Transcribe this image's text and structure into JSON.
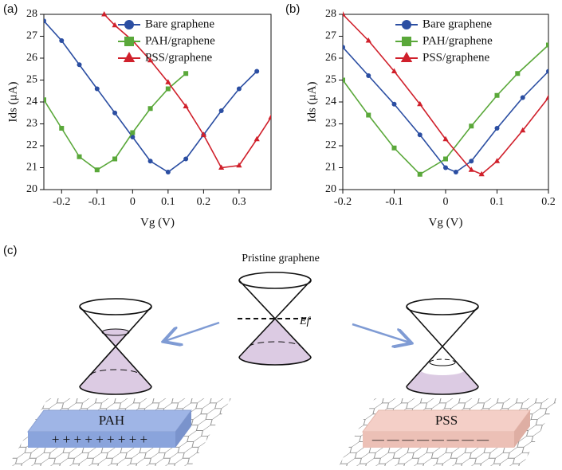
{
  "chart_data": [
    {
      "type": "line",
      "panel": "(a)",
      "x_label": "Vg (V)",
      "y_label": "Ids (μA)",
      "xlim": [
        -0.25,
        0.39
      ],
      "xticks": [
        -0.2,
        -0.1,
        0.0,
        0.1,
        0.2,
        0.3
      ],
      "ylim": [
        20,
        28
      ],
      "yticks": [
        20,
        21,
        22,
        23,
        24,
        25,
        26,
        27,
        28
      ],
      "legend": "upper right",
      "series": [
        {
          "name": "Bare graphene",
          "color": "#2b4ea2",
          "marker": "circle",
          "x": [
            -0.25,
            -0.2,
            -0.15,
            -0.1,
            -0.05,
            0,
            0.05,
            0.1,
            0.15,
            0.2,
            0.25,
            0.3,
            0.35
          ],
          "values": [
            27.7,
            26.8,
            25.7,
            24.6,
            23.5,
            22.4,
            21.3,
            20.8,
            21.4,
            22.5,
            23.6,
            24.6,
            25.4
          ]
        },
        {
          "name": "PAH/graphene",
          "color": "#5aa83a",
          "marker": "square",
          "x": [
            -0.25,
            -0.2,
            -0.15,
            -0.1,
            -0.05,
            0,
            0.05,
            0.1,
            0.15
          ],
          "values": [
            24.1,
            22.8,
            21.5,
            20.9,
            21.4,
            22.6,
            23.7,
            24.6,
            25.3
          ]
        },
        {
          "name": "PSS/graphene",
          "color": "#d0202b",
          "marker": "triangle",
          "x": [
            -0.08,
            -0.05,
            0,
            0.05,
            0.1,
            0.15,
            0.2,
            0.25,
            0.3,
            0.35,
            0.39
          ],
          "values": [
            28.0,
            27.5,
            26.8,
            25.9,
            24.9,
            23.8,
            22.5,
            21.0,
            21.1,
            22.3,
            23.3
          ]
        }
      ]
    },
    {
      "type": "line",
      "panel": "(b)",
      "x_label": "Vg (V)",
      "y_label": "Ids (μA)",
      "xlim": [
        -0.2,
        0.2
      ],
      "xticks": [
        -0.2,
        -0.1,
        0.0,
        0.1,
        0.2
      ],
      "ylim": [
        20,
        28
      ],
      "yticks": [
        20,
        21,
        22,
        23,
        24,
        25,
        26,
        27,
        28
      ],
      "legend": "upper right",
      "series": [
        {
          "name": "Bare graphene",
          "color": "#2b4ea2",
          "marker": "circle",
          "x": [
            -0.2,
            -0.15,
            -0.1,
            -0.05,
            0,
            0.02,
            0.05,
            0.1,
            0.15,
            0.2
          ],
          "values": [
            26.5,
            25.2,
            23.9,
            22.5,
            21.0,
            20.8,
            21.3,
            22.8,
            24.2,
            25.4
          ]
        },
        {
          "name": "PAH/graphene",
          "color": "#5aa83a",
          "marker": "square",
          "x": [
            -0.2,
            -0.15,
            -0.1,
            -0.05,
            0,
            0.05,
            0.1,
            0.14,
            0.2
          ],
          "values": [
            25.0,
            23.4,
            21.9,
            20.7,
            21.4,
            22.9,
            24.3,
            25.3,
            26.6
          ]
        },
        {
          "name": "PSS/graphene",
          "color": "#d0202b",
          "marker": "triangle",
          "x": [
            -0.2,
            -0.15,
            -0.1,
            -0.05,
            0,
            0.05,
            0.07,
            0.1,
            0.15,
            0.2
          ],
          "values": [
            28.0,
            26.8,
            25.4,
            23.9,
            22.3,
            20.9,
            20.7,
            21.3,
            22.7,
            24.2
          ]
        }
      ]
    }
  ],
  "diagram": {
    "panel": "(c)",
    "title": "Pristine graphene",
    "fermi_label": "Ef",
    "left_label": "PAH",
    "left_charges": "+ + + + + + + + +",
    "right_label": "PSS",
    "right_charges": "— — — — — — — —"
  }
}
